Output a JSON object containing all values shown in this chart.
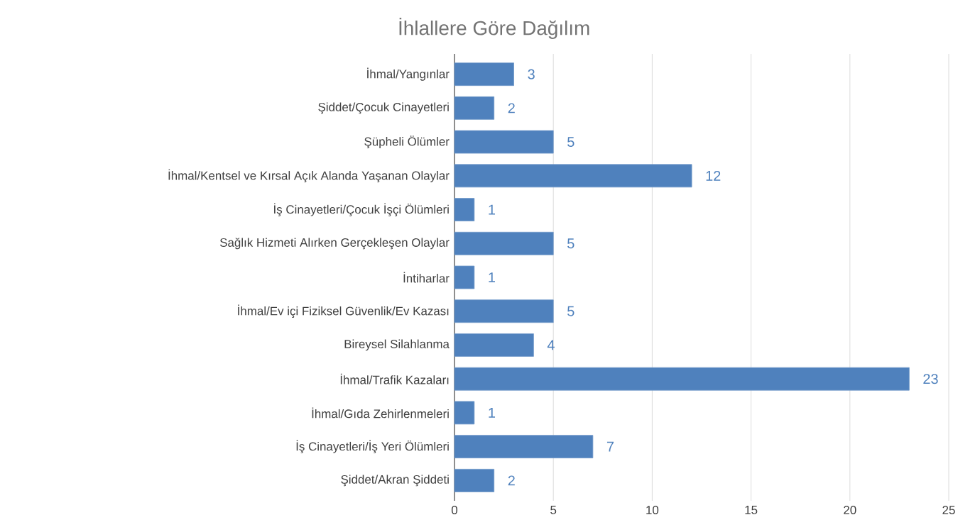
{
  "chart_data": {
    "type": "bar",
    "orientation": "horizontal",
    "title": "İhlallere Göre Dağılım",
    "categories": [
      "İhmal/Yangınlar",
      "Şiddet/Çocuk Cinayetleri",
      "Şüpheli Ölümler",
      "İhmal/Kentsel ve Kırsal Açık Alanda Yaşanan Olaylar",
      "İş Cinayetleri/Çocuk İşçi Ölümleri",
      "Sağlık Hizmeti Alırken Gerçekleşen Olaylar",
      "İntiharlar",
      "İhmal/Ev içi Fiziksel Güvenlik/Ev Kazası",
      "Bireysel Silahlanma",
      "İhmal/Trafik Kazaları",
      "İhmal/Gıda Zehirlenmeleri",
      "İş Cinayetleri/İş Yeri Ölümleri",
      "Şiddet/Akran Şiddeti"
    ],
    "values": [
      3,
      2,
      5,
      12,
      1,
      5,
      1,
      5,
      4,
      23,
      1,
      7,
      2
    ],
    "color": "#4f81bd",
    "xlim": [
      0,
      25
    ],
    "xticks": [
      0,
      5,
      10,
      15,
      20,
      25
    ],
    "grid": "x",
    "data_labels": true
  }
}
